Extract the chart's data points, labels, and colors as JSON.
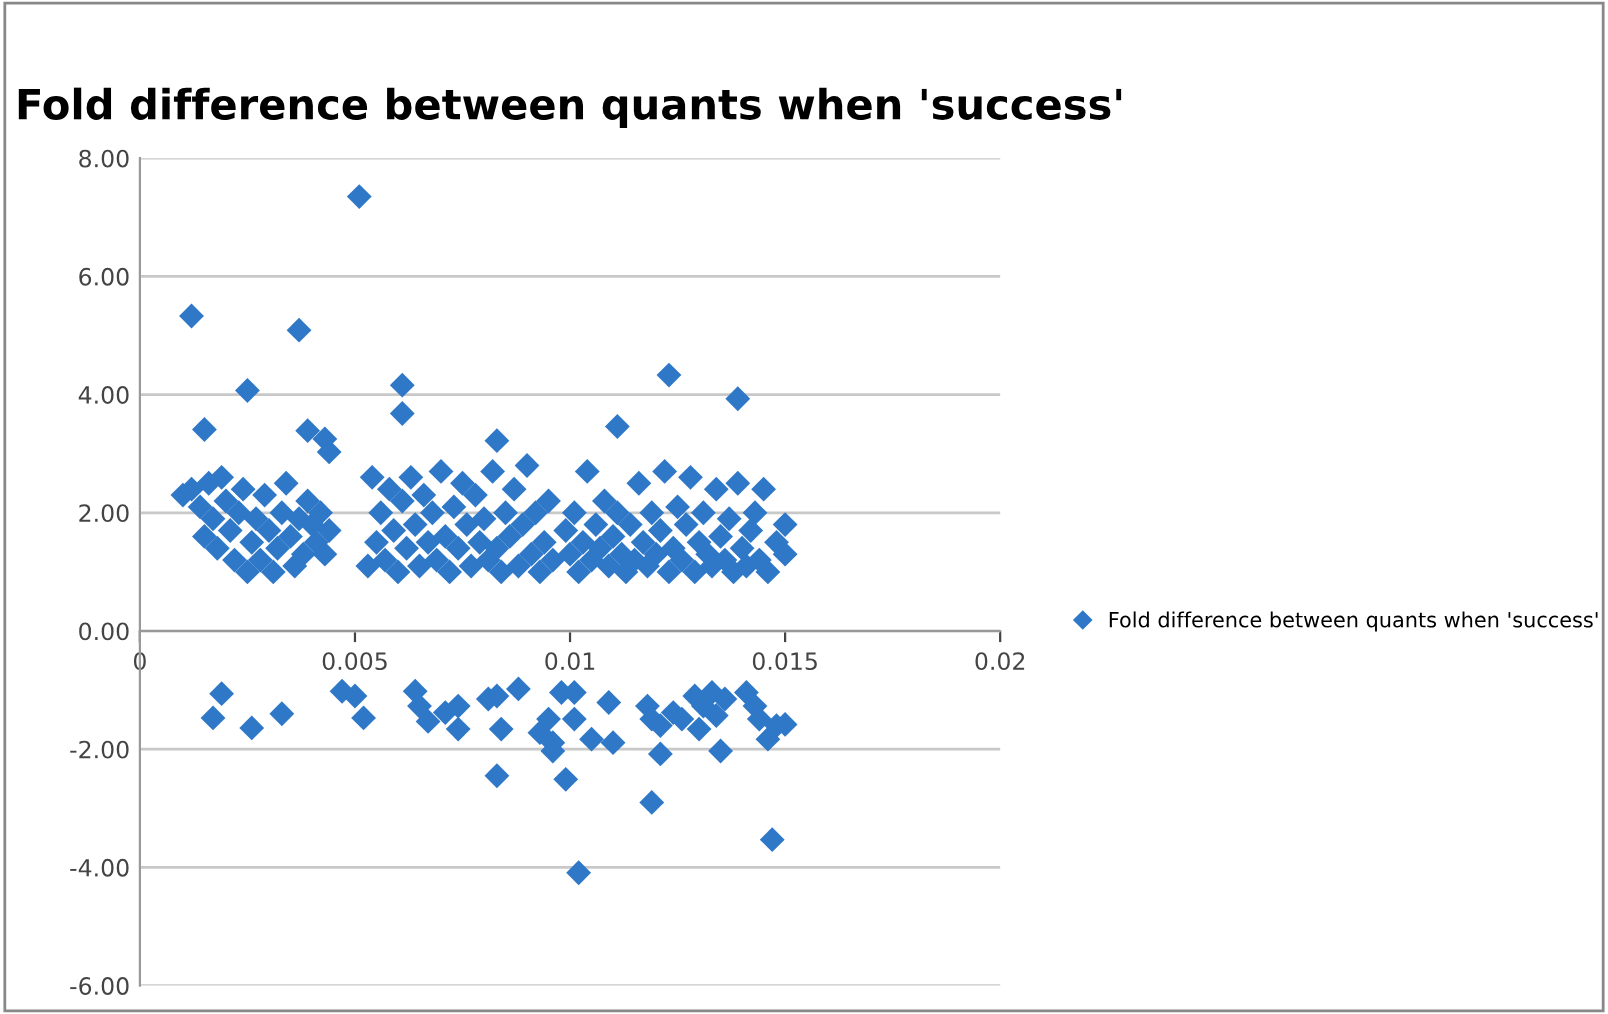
{
  "chart_data": {
    "type": "scatter",
    "title": "Fold difference between quants when 'success'",
    "xlim": [
      0,
      0.02
    ],
    "xticks": [
      0,
      0.005,
      0.01,
      0.015,
      0.02
    ],
    "ylim": [
      -6,
      8
    ],
    "yticks": [
      {
        "value": -6,
        "label": "-6.00"
      },
      {
        "value": -4,
        "label": "-4.00"
      },
      {
        "value": -2,
        "label": "-2.00"
      },
      {
        "value": 0,
        "label": "0.00"
      },
      {
        "value": 2,
        "label": "2.00"
      },
      {
        "value": 4,
        "label": "4.00"
      },
      {
        "value": 6,
        "label": "6.00"
      },
      {
        "value": 8,
        "label": "8.00"
      }
    ],
    "grid": "y",
    "legend": "right",
    "marker": "diamond",
    "series": [
      {
        "name": "Fold difference between quants when 'success'",
        "color": "#2f78c8",
        "x": [
          0.0051,
          0.0012,
          0.0037,
          0.0025,
          0.0015,
          0.0039,
          0.0043,
          0.0044,
          0.0061,
          0.0061,
          0.0083,
          0.0111,
          0.0123,
          0.0139,
          0.001,
          0.0012,
          0.0014,
          0.0015,
          0.0016,
          0.0017,
          0.0018,
          0.0019,
          0.002,
          0.0021,
          0.0022,
          0.0023,
          0.0024,
          0.0025,
          0.0026,
          0.0027,
          0.0028,
          0.0029,
          0.003,
          0.0031,
          0.0032,
          0.0033,
          0.0034,
          0.0035,
          0.0036,
          0.0037,
          0.0038,
          0.0039,
          0.004,
          0.0041,
          0.0042,
          0.0043,
          0.0044,
          0.0053,
          0.0054,
          0.0055,
          0.0056,
          0.0057,
          0.0058,
          0.0059,
          0.006,
          0.0061,
          0.0062,
          0.0063,
          0.0064,
          0.0065,
          0.0066,
          0.0067,
          0.0068,
          0.0069,
          0.007,
          0.0071,
          0.0072,
          0.0073,
          0.0074,
          0.0075,
          0.0076,
          0.0077,
          0.0078,
          0.0079,
          0.008,
          0.0081,
          0.0082,
          0.0083,
          0.0084,
          0.0085,
          0.0086,
          0.0087,
          0.0088,
          0.0089,
          0.009,
          0.0091,
          0.0092,
          0.0093,
          0.0094,
          0.0095,
          0.0096,
          0.0099,
          0.01,
          0.0101,
          0.0102,
          0.0103,
          0.0104,
          0.0105,
          0.0106,
          0.0107,
          0.0108,
          0.0109,
          0.011,
          0.0111,
          0.0112,
          0.0113,
          0.0114,
          0.0115,
          0.0116,
          0.0117,
          0.0118,
          0.0119,
          0.012,
          0.0121,
          0.0122,
          0.0123,
          0.0124,
          0.0125,
          0.0126,
          0.0127,
          0.0128,
          0.0129,
          0.013,
          0.0131,
          0.0132,
          0.0133,
          0.0134,
          0.0135,
          0.0136,
          0.0137,
          0.0138,
          0.0139,
          0.014,
          0.0141,
          0.0142,
          0.0143,
          0.0144,
          0.0145,
          0.0146,
          0.0148,
          0.015,
          0.015,
          0.0017,
          0.0019,
          0.0026,
          0.0033,
          0.0047,
          0.005,
          0.0052,
          0.0064,
          0.0065,
          0.0067,
          0.0071,
          0.0074,
          0.0074,
          0.0081,
          0.0083,
          0.0084,
          0.0083,
          0.0088,
          0.0093,
          0.0095,
          0.0096,
          0.0096,
          0.0098,
          0.0099,
          0.0101,
          0.0101,
          0.0102,
          0.0105,
          0.0109,
          0.011,
          0.0118,
          0.0119,
          0.0119,
          0.0121,
          0.0121,
          0.0124,
          0.0126,
          0.0129,
          0.013,
          0.0131,
          0.0133,
          0.0134,
          0.0135,
          0.0136,
          0.0141,
          0.0143,
          0.0144,
          0.0146,
          0.0148,
          0.015,
          0.0147
        ],
        "values": [
          7.35,
          5.33,
          5.09,
          4.07,
          3.41,
          3.39,
          3.25,
          3.03,
          4.16,
          3.68,
          3.22,
          3.46,
          4.33,
          3.93,
          2.3,
          2.4,
          2.1,
          1.6,
          2.5,
          1.9,
          1.4,
          2.6,
          2.2,
          1.7,
          1.2,
          2.0,
          2.4,
          1.0,
          1.5,
          1.9,
          1.2,
          2.3,
          1.7,
          1.0,
          1.4,
          2.0,
          2.5,
          1.6,
          1.1,
          1.9,
          1.3,
          2.2,
          1.8,
          1.5,
          2.0,
          1.3,
          1.7,
          1.1,
          2.6,
          1.5,
          2.0,
          1.2,
          2.4,
          1.7,
          1.0,
          2.2,
          1.4,
          2.6,
          1.8,
          1.1,
          2.3,
          1.5,
          2.0,
          1.2,
          2.7,
          1.6,
          1.0,
          2.1,
          1.4,
          2.5,
          1.8,
          1.1,
          2.3,
          1.5,
          1.9,
          1.2,
          2.7,
          1.4,
          1.0,
          2.0,
          1.6,
          2.4,
          1.1,
          1.8,
          2.8,
          1.3,
          2.0,
          1.0,
          1.5,
          2.2,
          1.2,
          1.7,
          1.3,
          2.0,
          1.0,
          1.5,
          2.7,
          1.2,
          1.8,
          1.4,
          2.2,
          1.1,
          1.6,
          2.0,
          1.3,
          1.0,
          1.8,
          1.2,
          2.5,
          1.5,
          1.1,
          2.0,
          1.3,
          1.7,
          2.7,
          1.0,
          1.4,
          2.1,
          1.2,
          1.8,
          2.6,
          1.0,
          1.5,
          2.0,
          1.3,
          1.1,
          2.4,
          1.6,
          1.2,
          1.9,
          1.0,
          2.5,
          1.4,
          1.1,
          1.7,
          2.0,
          1.2,
          2.4,
          1.0,
          1.5,
          1.8,
          1.3,
          -1.47,
          -1.06,
          -1.64,
          -1.4,
          -1.02,
          -1.1,
          -1.47,
          -1.02,
          -1.27,
          -1.53,
          -1.38,
          -1.27,
          -1.66,
          -1.15,
          -1.1,
          -1.66,
          -2.45,
          -0.98,
          -1.72,
          -1.49,
          -1.89,
          -2.03,
          -1.04,
          -2.51,
          -1.04,
          -1.49,
          -4.09,
          -1.83,
          -1.21,
          -1.89,
          -1.27,
          -1.49,
          -2.9,
          -1.6,
          -2.08,
          -1.38,
          -1.49,
          -1.1,
          -1.66,
          -1.27,
          -1.04,
          -1.43,
          -2.03,
          -1.15,
          -1.04,
          -1.27,
          -1.49,
          -1.83,
          -1.6,
          -1.58,
          -3.53
        ]
      }
    ]
  }
}
